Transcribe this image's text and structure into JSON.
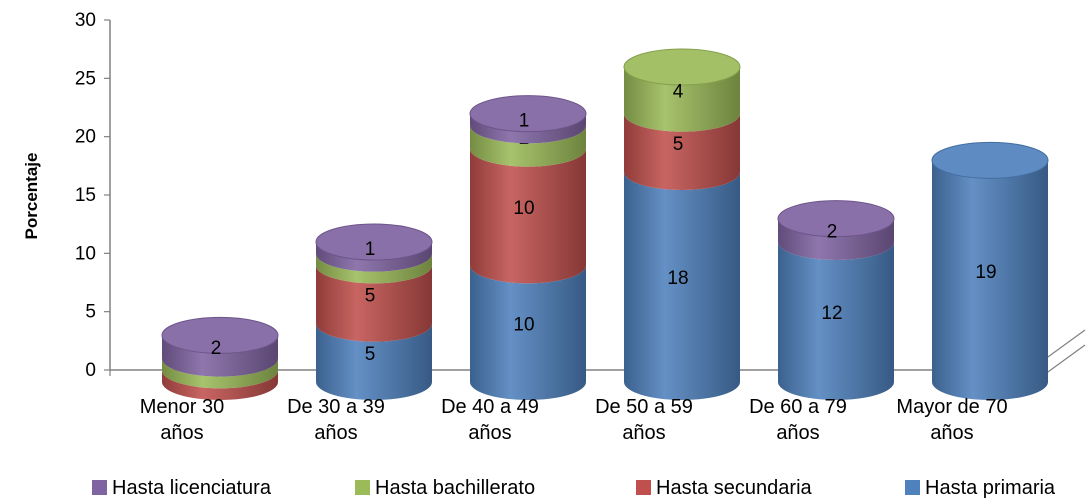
{
  "chart_data": {
    "type": "bar",
    "stacked": true,
    "style": "3d-cylinder",
    "ylabel": "Porcentaje",
    "ylim": [
      0,
      30
    ],
    "yticks": [
      "0",
      "5",
      "10",
      "15",
      "20",
      "25",
      "30"
    ],
    "categories": [
      [
        "Menor 30",
        "años"
      ],
      [
        "De 30 a 39",
        "años"
      ],
      [
        "De 40 a 49",
        "años"
      ],
      [
        "De 50 a 59",
        "años"
      ],
      [
        "De 60 a 79",
        "años"
      ],
      [
        "Mayor de 70",
        "años"
      ]
    ],
    "series": [
      {
        "name": "Hasta primaria",
        "color": "#4f81bd",
        "values": [
          0,
          5,
          10,
          18,
          12,
          19
        ]
      },
      {
        "name": "Hasta secundaria",
        "color": "#c0504d",
        "values": [
          1,
          5,
          10,
          5,
          0,
          0
        ]
      },
      {
        "name": "Hasta bachillerato",
        "color": "#9bbb59",
        "values": [
          1,
          1,
          2,
          4,
          0,
          0
        ]
      },
      {
        "name": "Hasta licenciatura",
        "color": "#8064a2",
        "values": [
          2,
          1,
          1,
          0,
          2,
          0
        ]
      }
    ],
    "legend_order": [
      "Hasta licenciatura",
      "Hasta bachillerato",
      "Hasta secundaria",
      "Hasta primaria"
    ],
    "legend_position": "bottom",
    "grid": false
  }
}
